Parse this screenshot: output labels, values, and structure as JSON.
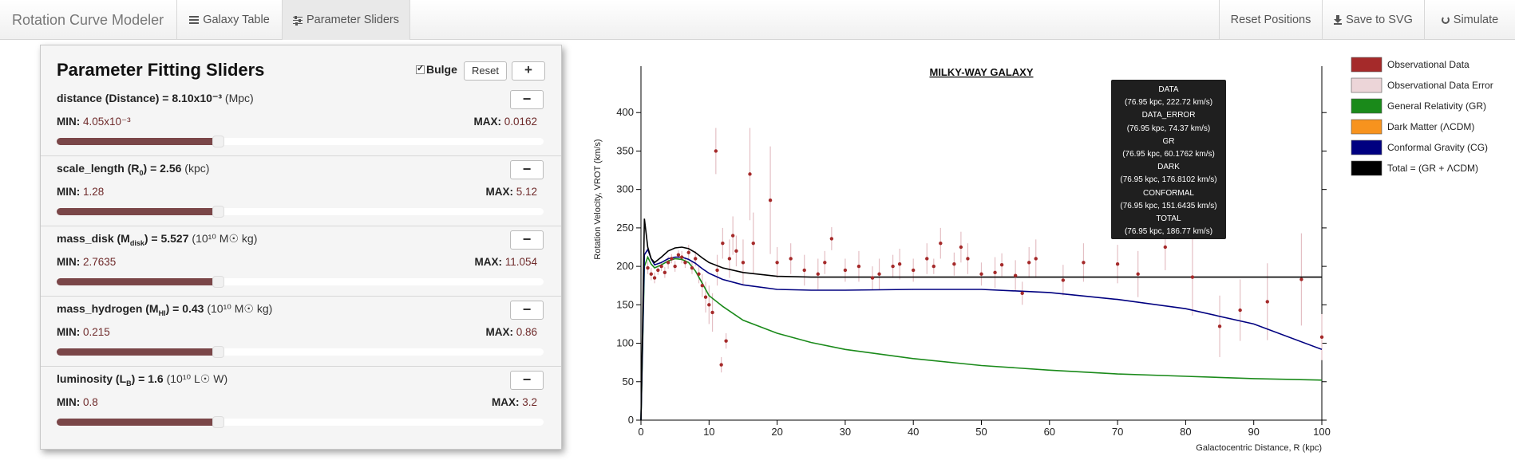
{
  "navbar": {
    "brand": "Rotation Curve Modeler",
    "galaxy_table": "Galaxy Table",
    "parameter_sliders": "Parameter Sliders",
    "reset_positions": "Reset Positions",
    "save_svg": "Save to SVG",
    "simulate": "Simulate"
  },
  "panel": {
    "title": "Parameter Fitting Sliders",
    "bulge_label": "Bulge",
    "bulge_checked": true,
    "reset_label": "Reset",
    "plus_label": "+",
    "minus_label": "−",
    "params": [
      {
        "name": "distance",
        "symbol": "Distance",
        "value": "8.10x10⁻³",
        "unit": "(Mpc)",
        "min": "4.05x10⁻³",
        "max": "0.0162",
        "fraction": 0.333
      },
      {
        "name": "scale_length",
        "symbol": "R₀",
        "value": "2.56",
        "unit": "(kpc)",
        "min": "1.28",
        "max": "5.12",
        "fraction": 0.333
      },
      {
        "name": "mass_disk",
        "symbol": "M_disk",
        "value": "5.527",
        "unit": "(10¹⁰ M☉ kg)",
        "min": "2.7635",
        "max": "11.054",
        "fraction": 0.333
      },
      {
        "name": "mass_hydrogen",
        "symbol": "M_HI",
        "value": "0.43",
        "unit": "(10¹⁰ M☉ kg)",
        "min": "0.215",
        "max": "0.86",
        "fraction": 0.333
      },
      {
        "name": "luminosity",
        "symbol": "L_B",
        "value": "1.6",
        "unit": "(10¹⁰ L☉ W)",
        "min": "0.8",
        "max": "3.2",
        "fraction": 0.333
      }
    ]
  },
  "chart_data": {
    "type": "scatter",
    "title": "MILKY-WAY GALAXY",
    "xlabel": "Galactocentric Distance, R (kpc)",
    "ylabel": "Rotation Velocity, VROT (km/s)",
    "xlim": [
      0,
      100
    ],
    "ylim": [
      0,
      450
    ],
    "xticks": [
      0,
      10,
      20,
      30,
      40,
      50,
      60,
      70,
      80,
      90,
      100
    ],
    "yticks": [
      0,
      50,
      100,
      150,
      200,
      250,
      300,
      350,
      400
    ],
    "legend_position": "right",
    "legend": [
      {
        "label": "Observational Data",
        "color": "#a52a2a"
      },
      {
        "label": "Observational Data Error",
        "color": "#ecd5d8"
      },
      {
        "label": "General Relativity (GR)",
        "color": "#1a8a1a"
      },
      {
        "label": "Dark Matter (ΛCDM)",
        "color": "#f7931e"
      },
      {
        "label": "Conformal Gravity (CG)",
        "color": "#000080"
      },
      {
        "label": "Total = (GR + ΛCDM)",
        "color": "#000000"
      }
    ],
    "series": [
      {
        "name": "General Relativity (GR)",
        "color": "#1a8a1a",
        "x": [
          0,
          0.5,
          1,
          1.5,
          2,
          3,
          4,
          5,
          6,
          7,
          8,
          9,
          10,
          12,
          15,
          20,
          25,
          30,
          40,
          50,
          60,
          70,
          80,
          90,
          100
        ],
        "y": [
          0,
          200,
          212,
          203,
          198,
          202,
          207,
          210,
          209,
          205,
          194,
          178,
          162,
          148,
          130,
          113,
          101,
          92,
          80,
          71,
          65,
          60,
          57,
          54,
          52
        ]
      },
      {
        "name": "Conformal Gravity (CG)",
        "color": "#000080",
        "x": [
          0,
          0.5,
          1,
          1.5,
          2,
          3,
          4,
          5,
          6,
          7,
          8,
          9,
          10,
          12,
          15,
          20,
          25,
          30,
          40,
          50,
          60,
          70,
          80,
          90,
          100
        ],
        "y": [
          0,
          215,
          222,
          210,
          202,
          205,
          210,
          212,
          212,
          209,
          204,
          197,
          191,
          183,
          176,
          170,
          169,
          169,
          170,
          170,
          166,
          157,
          145,
          125,
          92
        ]
      },
      {
        "name": "Total = (GR + ΛCDM)",
        "color": "#000000",
        "x": [
          0,
          0.5,
          1,
          1.5,
          2,
          3,
          4,
          5,
          6,
          7,
          8,
          9,
          10,
          12,
          15,
          20,
          25,
          30,
          40,
          50,
          60,
          70,
          80,
          90,
          100
        ],
        "y": [
          0,
          262,
          225,
          210,
          205,
          212,
          220,
          224,
          225,
          223,
          218,
          211,
          205,
          198,
          192,
          187,
          186,
          186,
          186,
          186,
          186,
          186,
          186,
          186,
          186
        ]
      }
    ],
    "observations": [
      [
        1.0,
        198,
        8
      ],
      [
        1.5,
        190,
        8
      ],
      [
        2.0,
        185,
        7
      ],
      [
        2.5,
        195,
        6
      ],
      [
        3.0,
        200,
        6
      ],
      [
        3.5,
        192,
        7
      ],
      [
        4.0,
        205,
        8
      ],
      [
        4.5,
        210,
        6
      ],
      [
        5.0,
        200,
        7
      ],
      [
        5.5,
        215,
        6
      ],
      [
        6.0,
        212,
        8
      ],
      [
        6.5,
        205,
        7
      ],
      [
        7.0,
        218,
        10
      ],
      [
        7.5,
        198,
        8
      ],
      [
        8.0,
        210,
        10
      ],
      [
        8.5,
        190,
        12
      ],
      [
        9.0,
        175,
        15
      ],
      [
        9.5,
        160,
        20
      ],
      [
        10.0,
        150,
        25
      ],
      [
        10.5,
        140,
        25
      ],
      [
        11.0,
        350,
        30
      ],
      [
        11.2,
        195,
        20
      ],
      [
        11.8,
        72,
        10
      ],
      [
        12.0,
        230,
        20
      ],
      [
        12.5,
        103,
        10
      ],
      [
        13.0,
        210,
        25
      ],
      [
        13.5,
        240,
        25
      ],
      [
        14.0,
        220,
        20
      ],
      [
        15.0,
        205,
        30
      ],
      [
        16.0,
        320,
        60
      ],
      [
        16.5,
        230,
        40
      ],
      [
        19.0,
        286,
        70
      ],
      [
        20.0,
        205,
        20
      ],
      [
        22.0,
        210,
        20
      ],
      [
        24.0,
        195,
        20
      ],
      [
        26.0,
        190,
        20
      ],
      [
        27.0,
        205,
        15
      ],
      [
        28.0,
        236,
        15
      ],
      [
        30.0,
        195,
        15
      ],
      [
        32.0,
        200,
        20
      ],
      [
        34.0,
        185,
        15
      ],
      [
        35.0,
        190,
        20
      ],
      [
        37.0,
        200,
        15
      ],
      [
        38.0,
        203,
        20
      ],
      [
        40.0,
        195,
        15
      ],
      [
        42.0,
        210,
        20
      ],
      [
        43.0,
        200,
        10
      ],
      [
        44.0,
        230,
        20
      ],
      [
        46.0,
        203,
        15
      ],
      [
        47.0,
        225,
        20
      ],
      [
        48.0,
        210,
        20
      ],
      [
        50.0,
        190,
        15
      ],
      [
        52.0,
        192,
        20
      ],
      [
        53.0,
        202,
        15
      ],
      [
        55.0,
        188,
        20
      ],
      [
        56.0,
        165,
        15
      ],
      [
        57.0,
        205,
        20
      ],
      [
        58.0,
        210,
        25
      ],
      [
        62.0,
        182,
        20
      ],
      [
        65.0,
        205,
        25
      ],
      [
        70.0,
        203,
        25
      ],
      [
        73.0,
        190,
        30
      ],
      [
        77.0,
        225,
        30
      ],
      [
        81.0,
        186,
        50
      ],
      [
        85.0,
        122,
        40
      ],
      [
        88.0,
        143,
        40
      ],
      [
        92.0,
        154,
        50
      ],
      [
        97.0,
        183,
        60
      ],
      [
        100.0,
        108,
        30
      ]
    ]
  },
  "tooltip": {
    "lines": [
      "DATA",
      "(76.95 kpc, 222.72 km/s)",
      "DATA_ERROR",
      "(76.95 kpc, 74.37 km/s)",
      "GR",
      "(76.95 kpc, 60.1762 km/s)",
      "DARK",
      "(76.95 kpc, 176.8102 km/s)",
      "CONFORMAL",
      "(76.95 kpc, 151.6435 km/s)",
      "TOTAL",
      "(76.95 kpc, 186.77 km/s)"
    ]
  }
}
